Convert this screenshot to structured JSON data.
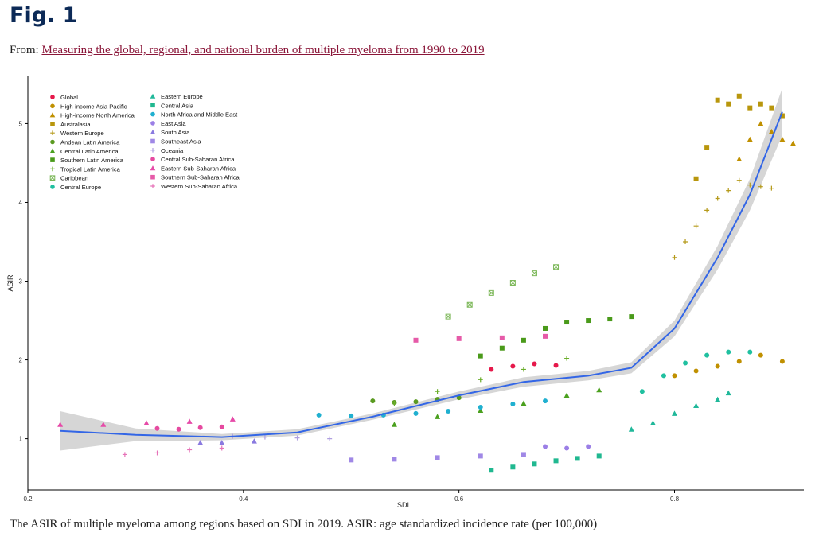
{
  "page": {
    "figure_title": "Fig. 1",
    "from_prefix": "From: ",
    "from_link": "Measuring the global, regional, and national burden of multiple myeloma from 1990 to 2019",
    "caption": "The ASIR of multiple myeloma among regions based on SDI in 2019. ASIR: age standardized incidence rate (per 100,000)"
  },
  "chart_data": {
    "type": "scatter",
    "xlabel": "SDI",
    "ylabel": "ASIR",
    "xlim": [
      0.2,
      0.92
    ],
    "ylim": [
      0.35,
      5.6
    ],
    "xticks": [
      0.2,
      0.4,
      0.6,
      0.8
    ],
    "xtick_labels": [
      "0.2",
      "0.4",
      "0.6",
      "0.8"
    ],
    "yticks": [
      1,
      2,
      3,
      4,
      5
    ],
    "ytick_labels": [
      "1",
      "2",
      "3",
      "4",
      "5"
    ],
    "grid": false,
    "legend_position": "top-left",
    "smooth_color": "#3366e6",
    "band_color": "#cfcfcf",
    "smooth_curve": {
      "x": [
        0.23,
        0.3,
        0.38,
        0.45,
        0.52,
        0.6,
        0.66,
        0.72,
        0.76,
        0.8,
        0.84,
        0.87,
        0.9
      ],
      "y": [
        1.1,
        1.05,
        1.02,
        1.08,
        1.28,
        1.55,
        1.72,
        1.8,
        1.9,
        2.4,
        3.3,
        4.1,
        5.15
      ],
      "lower": [
        0.85,
        0.97,
        0.98,
        1.04,
        1.24,
        1.5,
        1.66,
        1.74,
        1.83,
        2.3,
        3.15,
        3.9,
        4.85
      ],
      "upper": [
        1.35,
        1.13,
        1.06,
        1.12,
        1.32,
        1.6,
        1.78,
        1.86,
        1.97,
        2.5,
        3.45,
        4.3,
        5.45
      ]
    },
    "series": [
      {
        "name": "Global",
        "color": "#e6194b",
        "shape": "circle",
        "x": [
          0.63,
          0.65,
          0.67,
          0.69
        ],
        "y": [
          1.88,
          1.92,
          1.95,
          1.93
        ]
      },
      {
        "name": "High-income Asia Pacific",
        "color": "#c09000",
        "shape": "circle",
        "x": [
          0.8,
          0.82,
          0.84,
          0.86,
          0.88,
          0.9
        ],
        "y": [
          1.8,
          1.86,
          1.92,
          1.98,
          2.06,
          1.98
        ]
      },
      {
        "name": "High-income North America",
        "color": "#c09000",
        "shape": "triangle",
        "x": [
          0.86,
          0.87,
          0.88,
          0.89,
          0.9,
          0.91
        ],
        "y": [
          4.55,
          4.8,
          5.0,
          4.9,
          4.8,
          4.75
        ]
      },
      {
        "name": "Australasia",
        "color": "#b8960c",
        "shape": "square",
        "x": [
          0.82,
          0.83,
          0.84,
          0.85,
          0.86,
          0.87,
          0.88,
          0.89,
          0.9
        ],
        "y": [
          4.3,
          4.7,
          5.3,
          5.25,
          5.35,
          5.2,
          5.25,
          5.2,
          5.1
        ]
      },
      {
        "name": "Western Europe",
        "color": "#b59a1a",
        "shape": "plus",
        "x": [
          0.8,
          0.81,
          0.82,
          0.83,
          0.84,
          0.85,
          0.86,
          0.87,
          0.88,
          0.89
        ],
        "y": [
          3.3,
          3.5,
          3.7,
          3.9,
          4.05,
          4.15,
          4.28,
          4.22,
          4.2,
          4.18
        ]
      },
      {
        "name": "Andean Latin America",
        "color": "#5a9a20",
        "shape": "circle",
        "x": [
          0.52,
          0.54,
          0.56,
          0.58,
          0.6
        ],
        "y": [
          1.48,
          1.46,
          1.47,
          1.5,
          1.52
        ]
      },
      {
        "name": "Central Latin America",
        "color": "#4aa01e",
        "shape": "triangle",
        "x": [
          0.54,
          0.58,
          0.62,
          0.66,
          0.7,
          0.73
        ],
        "y": [
          1.18,
          1.28,
          1.36,
          1.45,
          1.55,
          1.62
        ]
      },
      {
        "name": "Southern Latin America",
        "color": "#4a9a1a",
        "shape": "square",
        "x": [
          0.62,
          0.64,
          0.66,
          0.68,
          0.7,
          0.72,
          0.74,
          0.76
        ],
        "y": [
          2.05,
          2.15,
          2.25,
          2.4,
          2.48,
          2.5,
          2.52,
          2.55
        ]
      },
      {
        "name": "Tropical Latin America",
        "color": "#6aae2a",
        "shape": "plus",
        "x": [
          0.54,
          0.58,
          0.62,
          0.66,
          0.7
        ],
        "y": [
          1.45,
          1.6,
          1.75,
          1.88,
          2.02
        ]
      },
      {
        "name": "Caribbean",
        "color": "#7db85a",
        "shape": "boxx",
        "x": [
          0.59,
          0.61,
          0.63,
          0.65,
          0.67,
          0.69
        ],
        "y": [
          2.55,
          2.7,
          2.85,
          2.98,
          3.1,
          3.18
        ]
      },
      {
        "name": "Central Europe",
        "color": "#20c0a0",
        "shape": "circle",
        "x": [
          0.77,
          0.79,
          0.81,
          0.83,
          0.85,
          0.87
        ],
        "y": [
          1.6,
          1.8,
          1.96,
          2.06,
          2.1,
          2.1
        ]
      },
      {
        "name": "Eastern Europe",
        "color": "#20b89a",
        "shape": "triangle",
        "x": [
          0.76,
          0.78,
          0.8,
          0.82,
          0.84,
          0.85
        ],
        "y": [
          1.12,
          1.2,
          1.32,
          1.42,
          1.5,
          1.58
        ]
      },
      {
        "name": "Central Asia",
        "color": "#20b890",
        "shape": "square",
        "x": [
          0.63,
          0.65,
          0.67,
          0.69,
          0.71,
          0.73
        ],
        "y": [
          0.6,
          0.64,
          0.68,
          0.72,
          0.75,
          0.78
        ]
      },
      {
        "name": "North Africa and Middle East",
        "color": "#20b0d0",
        "shape": "circle",
        "x": [
          0.47,
          0.5,
          0.53,
          0.56,
          0.59,
          0.62,
          0.65,
          0.68
        ],
        "y": [
          1.3,
          1.29,
          1.3,
          1.32,
          1.35,
          1.4,
          1.44,
          1.48
        ]
      },
      {
        "name": "East Asia",
        "color": "#9b7fe6",
        "shape": "circle",
        "x": [
          0.68,
          0.7,
          0.72
        ],
        "y": [
          0.9,
          0.88,
          0.9
        ]
      },
      {
        "name": "South Asia",
        "color": "#8a7ae0",
        "shape": "triangle",
        "x": [
          0.36,
          0.38,
          0.41
        ],
        "y": [
          0.95,
          0.95,
          0.97
        ]
      },
      {
        "name": "Southeast Asia",
        "color": "#a088e6",
        "shape": "square",
        "x": [
          0.5,
          0.54,
          0.58,
          0.62,
          0.66
        ],
        "y": [
          0.73,
          0.74,
          0.76,
          0.78,
          0.8
        ]
      },
      {
        "name": "Oceania",
        "color": "#b0a0e0",
        "shape": "plus",
        "x": [
          0.39,
          0.42,
          0.45,
          0.48
        ],
        "y": [
          1.03,
          1.02,
          1.01,
          1.0
        ]
      },
      {
        "name": "Central Sub-Saharan Africa",
        "color": "#e64aa0",
        "shape": "circle",
        "x": [
          0.32,
          0.34,
          0.36,
          0.38
        ],
        "y": [
          1.13,
          1.12,
          1.14,
          1.15
        ]
      },
      {
        "name": "Eastern Sub-Saharan Africa",
        "color": "#e64aa8",
        "shape": "triangle",
        "x": [
          0.23,
          0.27,
          0.31,
          0.35,
          0.39
        ],
        "y": [
          1.18,
          1.18,
          1.2,
          1.22,
          1.25
        ]
      },
      {
        "name": "Southern Sub-Saharan Africa",
        "color": "#e65aa8",
        "shape": "square",
        "x": [
          0.56,
          0.6,
          0.64,
          0.68
        ],
        "y": [
          2.25,
          2.27,
          2.28,
          2.3
        ]
      },
      {
        "name": "Western Sub-Saharan Africa",
        "color": "#e672b8",
        "shape": "plus",
        "x": [
          0.29,
          0.32,
          0.35,
          0.38
        ],
        "y": [
          0.8,
          0.82,
          0.86,
          0.88
        ]
      }
    ]
  }
}
